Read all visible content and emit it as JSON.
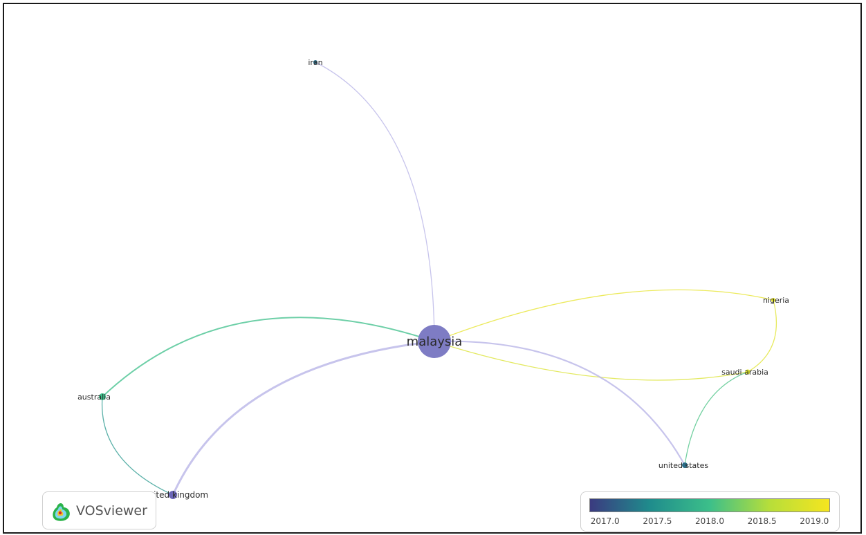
{
  "network": {
    "center": "malaysia",
    "nodes": [
      {
        "id": "malaysia",
        "label": "malaysia",
        "year": 2017.1
      },
      {
        "id": "iran",
        "label": "iran",
        "year": 2017.2
      },
      {
        "id": "nigeria",
        "label": "nigeria",
        "year": 2019.0
      },
      {
        "id": "saudi_arabia",
        "label": "saudi arabia",
        "year": 2018.9
      },
      {
        "id": "united_states",
        "label": "united states",
        "year": 2017.2
      },
      {
        "id": "australia",
        "label": "australia",
        "year": 2018.0
      },
      {
        "id": "united_kingdom",
        "label": "united kingdom",
        "year": 2017.1
      }
    ],
    "links": [
      {
        "source": "malaysia",
        "target": "iran"
      },
      {
        "source": "malaysia",
        "target": "nigeria"
      },
      {
        "source": "malaysia",
        "target": "saudi_arabia"
      },
      {
        "source": "malaysia",
        "target": "united_states"
      },
      {
        "source": "malaysia",
        "target": "australia"
      },
      {
        "source": "malaysia",
        "target": "united_kingdom"
      },
      {
        "source": "nigeria",
        "target": "saudi_arabia"
      },
      {
        "source": "saudi_arabia",
        "target": "united_states"
      },
      {
        "source": "australia",
        "target": "united_kingdom"
      }
    ]
  },
  "logo": {
    "text": "VOSviewer"
  },
  "legend": {
    "ticks": [
      "2017.0",
      "2017.5",
      "2018.0",
      "2018.5",
      "2019.0"
    ],
    "range": [
      2016.85,
      2019.15
    ],
    "colors": [
      "#3b3b80",
      "#1f8c8c",
      "#3cbf8a",
      "#b7de3a",
      "#f5e51f"
    ]
  }
}
